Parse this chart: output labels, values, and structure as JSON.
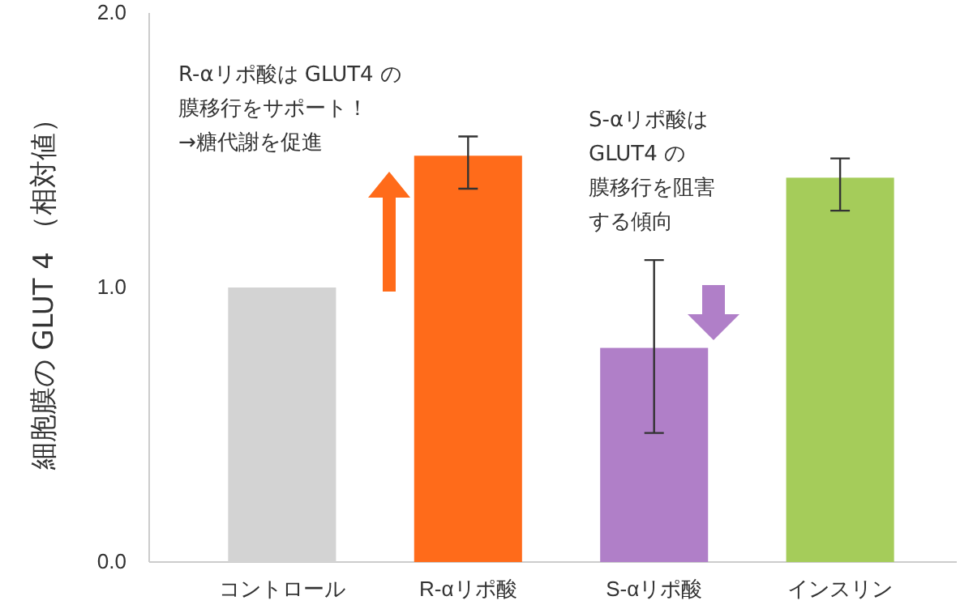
{
  "chart_data": {
    "type": "bar",
    "ylabel": "細胞膜の GLUT 4 （相対値）",
    "categories": [
      "コントロール",
      "R-αリポ酸",
      "S-αリポ酸",
      "インスリン"
    ],
    "values": [
      1.0,
      1.48,
      0.78,
      1.4
    ],
    "colors": [
      "#d3d3d3",
      "#ff6b1a",
      "#b07fc8",
      "#a5cc5a"
    ],
    "errors": [
      null,
      [
        1.36,
        1.55
      ],
      [
        0.47,
        1.1
      ],
      [
        1.28,
        1.47
      ]
    ],
    "ylim": [
      0,
      2
    ],
    "yticks": [
      {
        "value": 0,
        "label": "0.0"
      },
      {
        "value": 1,
        "label": "1.0"
      },
      {
        "value": 2,
        "label": "2.0"
      }
    ],
    "annotations": [
      "R-αリポ酸は GLUT4 の",
      "膜移行をサポート！",
      "→糖代謝を促進",
      "S-αリポ酸は",
      "GLUT4 の",
      "膜移行を阻害",
      "する傾向"
    ],
    "grid": false
  }
}
